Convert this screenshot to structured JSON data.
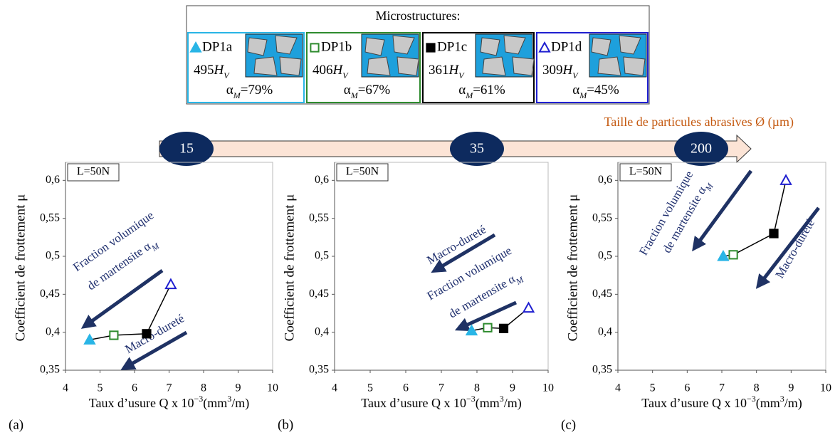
{
  "legend": {
    "title": "Microstructures:",
    "entries": [
      {
        "name": "DP1a",
        "color": "#29b5e6",
        "marker": "triangle",
        "filled": true,
        "hardness": "495",
        "hardness_unit": "H",
        "hardness_sub": "V",
        "alpha_symbol": "α",
        "alpha_sub": "M",
        "alpha_value": "=79%"
      },
      {
        "name": "DP1b",
        "color": "#2e8b2e",
        "marker": "square",
        "filled": false,
        "hardness": "406",
        "hardness_unit": "H",
        "hardness_sub": "V",
        "alpha_symbol": "α",
        "alpha_sub": "M",
        "alpha_value": "=67%"
      },
      {
        "name": "DP1c",
        "color": "#000000",
        "marker": "square",
        "filled": true,
        "hardness": "361",
        "hardness_unit": "H",
        "hardness_sub": "V",
        "alpha_symbol": "α",
        "alpha_sub": "M",
        "alpha_value": "=61%"
      },
      {
        "name": "DP1d",
        "color": "#1f1fd0",
        "marker": "triangle",
        "filled": false,
        "hardness": "309",
        "hardness_unit": "H",
        "hardness_sub": "V",
        "alpha_symbol": "α",
        "alpha_sub": "M",
        "alpha_value": "=45%"
      }
    ]
  },
  "particle_axis": {
    "title": "Taille de particules abrasives Ø (µm)",
    "sizes": [
      15,
      35,
      200
    ]
  },
  "chart_data": [
    {
      "type": "line",
      "panel": "(a)",
      "annotation_box": "L=50N",
      "ylabel": "Coefficient de frottement μ",
      "xlabel": [
        "Taux d’usure Q x 10",
        "−3",
        "(mm",
        "3",
        "/m)"
      ],
      "xlim": [
        4,
        10
      ],
      "xticks": [
        4,
        5,
        6,
        7,
        8,
        9,
        10
      ],
      "ylim": [
        0.35,
        0.62
      ],
      "yticks": [
        {
          "value": 0.35,
          "label": "0,35"
        },
        {
          "value": 0.4,
          "label": "0,4"
        },
        {
          "value": 0.45,
          "label": "0,45"
        },
        {
          "value": 0.5,
          "label": "0,5"
        },
        {
          "value": 0.55,
          "label": "0,55"
        },
        {
          "value": 0.6,
          "label": "0,6"
        }
      ],
      "series": [
        {
          "color": "#000000",
          "x": [
            4.7,
            5.4,
            6.35,
            7.05
          ],
          "values": [
            0.39,
            0.396,
            0.398,
            0.463
          ]
        }
      ],
      "annotations": [
        {
          "text": "Fraction volumique"
        },
        {
          "text": "de martensite α",
          "sub": "M"
        },
        {
          "text": "Macro-dureté"
        }
      ]
    },
    {
      "type": "line",
      "panel": "(b)",
      "annotation_box": "L=50N",
      "ylabel": "Coefficient de frottement μ",
      "xlabel": [
        "Taux d’usure Q x 10",
        "−3",
        "(mm",
        "3",
        "/m)"
      ],
      "xlim": [
        4,
        10
      ],
      "xticks": [
        4,
        5,
        6,
        7,
        8,
        9,
        10
      ],
      "ylim": [
        0.35,
        0.62
      ],
      "yticks": [
        {
          "value": 0.35,
          "label": "0,35"
        },
        {
          "value": 0.4,
          "label": "0,4"
        },
        {
          "value": 0.45,
          "label": "0,45"
        },
        {
          "value": 0.5,
          "label": "0,5"
        },
        {
          "value": 0.55,
          "label": "0,55"
        },
        {
          "value": 0.6,
          "label": "0,6"
        }
      ],
      "series": [
        {
          "color": "#000000",
          "x": [
            7.85,
            8.3,
            8.75,
            9.45
          ],
          "values": [
            0.402,
            0.406,
            0.405,
            0.432
          ]
        }
      ],
      "annotations": [
        {
          "text": "Macro-dureté"
        },
        {
          "text": "Fraction volumique"
        },
        {
          "text": "de martensite α",
          "sub": "M"
        }
      ]
    },
    {
      "type": "line",
      "panel": "(c)",
      "annotation_box": "L=50N",
      "ylabel": "Coefficient de frottement μ",
      "xlabel": [
        "Taux d’usure Q x 10",
        "−3",
        "(mm",
        "3",
        "/m)"
      ],
      "xlim": [
        4,
        10
      ],
      "xticks": [
        4,
        5,
        6,
        7,
        8,
        9,
        10
      ],
      "ylim": [
        0.35,
        0.62
      ],
      "yticks": [
        {
          "value": 0.35,
          "label": "0,35"
        },
        {
          "value": 0.4,
          "label": "0,4"
        },
        {
          "value": 0.45,
          "label": "0,45"
        },
        {
          "value": 0.5,
          "label": "0,5"
        },
        {
          "value": 0.55,
          "label": "0,55"
        },
        {
          "value": 0.6,
          "label": "0,6"
        }
      ],
      "series": [
        {
          "color": "#000000",
          "x": [
            7.04,
            7.33,
            8.5,
            8.85
          ],
          "values": [
            0.5,
            0.502,
            0.53,
            0.6
          ]
        }
      ],
      "annotations": [
        {
          "text": "Fraction volumique"
        },
        {
          "text": "de martensite α",
          "sub": "M"
        },
        {
          "text": "Macro-dureté"
        }
      ]
    }
  ]
}
